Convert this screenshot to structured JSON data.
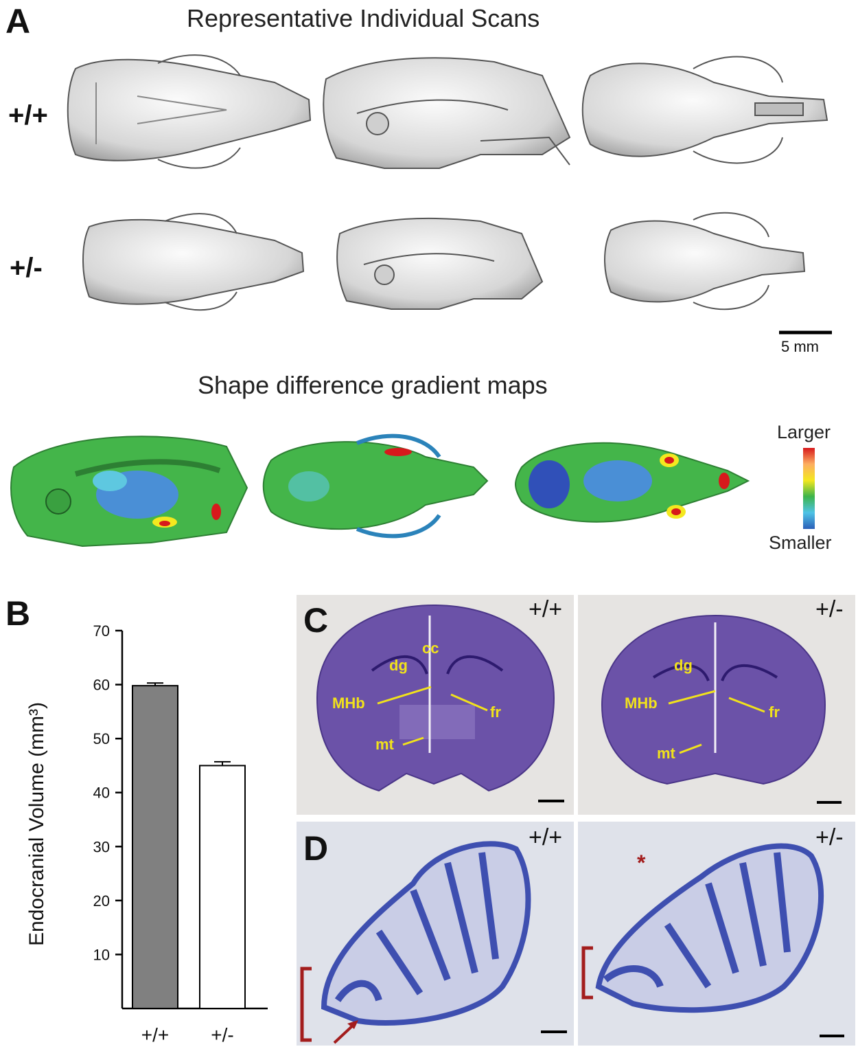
{
  "panel_A": {
    "letter": "A",
    "title": "Representative Individual Scans",
    "rows": [
      {
        "genotype": "+/+"
      },
      {
        "genotype": "+/-"
      }
    ],
    "scale_bar": "5 mm",
    "gradient_title": "Shape difference gradient maps",
    "colorbar": {
      "top_label": "Larger",
      "bottom_label": "Smaller",
      "colors": [
        "#d7191c",
        "#f4e81f",
        "#2fb34a",
        "#2b83ba",
        "#1f3aa0"
      ]
    }
  },
  "panel_B": {
    "letter": "B"
  },
  "panel_C": {
    "letter": "C",
    "left_genotype": "+/+",
    "right_genotype": "+/-",
    "left_labels": [
      "cc",
      "dg",
      "MHb",
      "fr",
      "mt"
    ],
    "right_labels": [
      "dg",
      "MHb",
      "fr",
      "mt"
    ]
  },
  "panel_D": {
    "letter": "D",
    "left_genotype": "+/+",
    "right_genotype": "+/-",
    "asterisk": "*"
  },
  "chart_data": {
    "type": "bar",
    "categories": [
      "+/+",
      "+/-"
    ],
    "values": [
      59.8,
      45.0
    ],
    "errors": [
      0.5,
      0.7
    ],
    "bar_colors": [
      "#808080",
      "#ffffff"
    ],
    "title": "",
    "xlabel": "",
    "ylabel": "Endocranial Volume (mm³)",
    "ylim": [
      0,
      70
    ],
    "yticks": [
      10,
      20,
      30,
      40,
      50,
      60,
      70
    ],
    "grid": false
  }
}
